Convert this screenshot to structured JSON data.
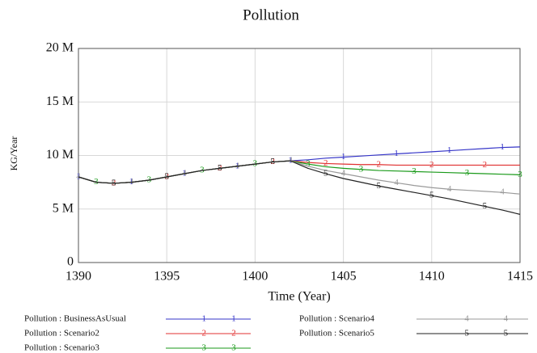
{
  "chart_data": {
    "type": "line",
    "title": "Pollution",
    "x_label": "Time (Year)",
    "y_label": "KG/Year",
    "x": [
      1390,
      1391,
      1392,
      1393,
      1394,
      1395,
      1396,
      1397,
      1398,
      1399,
      1400,
      1401,
      1402,
      1403,
      1404,
      1405,
      1406,
      1407,
      1408,
      1409,
      1410,
      1411,
      1412,
      1413,
      1414,
      1415
    ],
    "series": [
      {
        "name": "Pollution : BusinessAsUsual",
        "marker": "1",
        "color": "#3535c8",
        "values": [
          8000000,
          7500000,
          7400000,
          7500000,
          7700000,
          8000000,
          8300000,
          8600000,
          8800000,
          9000000,
          9200000,
          9400000,
          9500000,
          9600000,
          9750000,
          9850000,
          9950000,
          10050000,
          10150000,
          10250000,
          10350000,
          10450000,
          10550000,
          10650000,
          10750000,
          10800000
        ]
      },
      {
        "name": "Pollution : Scenario2",
        "marker": "2",
        "color": "#e03030",
        "values": [
          8000000,
          7500000,
          7400000,
          7500000,
          7700000,
          8000000,
          8300000,
          8600000,
          8800000,
          9000000,
          9200000,
          9400000,
          9500000,
          9350000,
          9250000,
          9200000,
          9150000,
          9150000,
          9100000,
          9100000,
          9100000,
          9100000,
          9100000,
          9100000,
          9100000,
          9100000
        ]
      },
      {
        "name": "Pollution : Scenario3",
        "marker": "3",
        "color": "#1a9a1a",
        "values": [
          8000000,
          7500000,
          7400000,
          7500000,
          7700000,
          8000000,
          8300000,
          8600000,
          8800000,
          9000000,
          9200000,
          9400000,
          9500000,
          9200000,
          8950000,
          8800000,
          8700000,
          8600000,
          8550000,
          8500000,
          8450000,
          8400000,
          8350000,
          8300000,
          8250000,
          8200000
        ]
      },
      {
        "name": "Pollution : Scenario4",
        "marker": "4",
        "color": "#9a9a9a",
        "values": [
          8000000,
          7500000,
          7400000,
          7500000,
          7700000,
          8000000,
          8300000,
          8600000,
          8800000,
          9000000,
          9200000,
          9400000,
          9500000,
          9000000,
          8600000,
          8300000,
          8000000,
          7700000,
          7450000,
          7200000,
          7000000,
          6850000,
          6750000,
          6650000,
          6550000,
          6400000
        ]
      },
      {
        "name": "Pollution : Scenario5",
        "marker": "5",
        "color": "#222222",
        "values": [
          8000000,
          7500000,
          7400000,
          7500000,
          7700000,
          8000000,
          8300000,
          8600000,
          8800000,
          9000000,
          9200000,
          9400000,
          9500000,
          8800000,
          8300000,
          7850000,
          7500000,
          7150000,
          6850000,
          6550000,
          6250000,
          5950000,
          5600000,
          5250000,
          4900000,
          4500000
        ]
      }
    ],
    "xlim": [
      1390,
      1415
    ],
    "xticks": [
      1390,
      1395,
      1400,
      1405,
      1410,
      1415
    ],
    "ylim": [
      0,
      20000000
    ],
    "yticks": [
      {
        "value": 0,
        "label": "0"
      },
      {
        "value": 5000000,
        "label": "5 M"
      },
      {
        "value": 10000000,
        "label": "10 M"
      },
      {
        "value": 15000000,
        "label": "15 M"
      },
      {
        "value": 20000000,
        "label": "20 M"
      }
    ],
    "grid": true,
    "legend": "bottom"
  }
}
